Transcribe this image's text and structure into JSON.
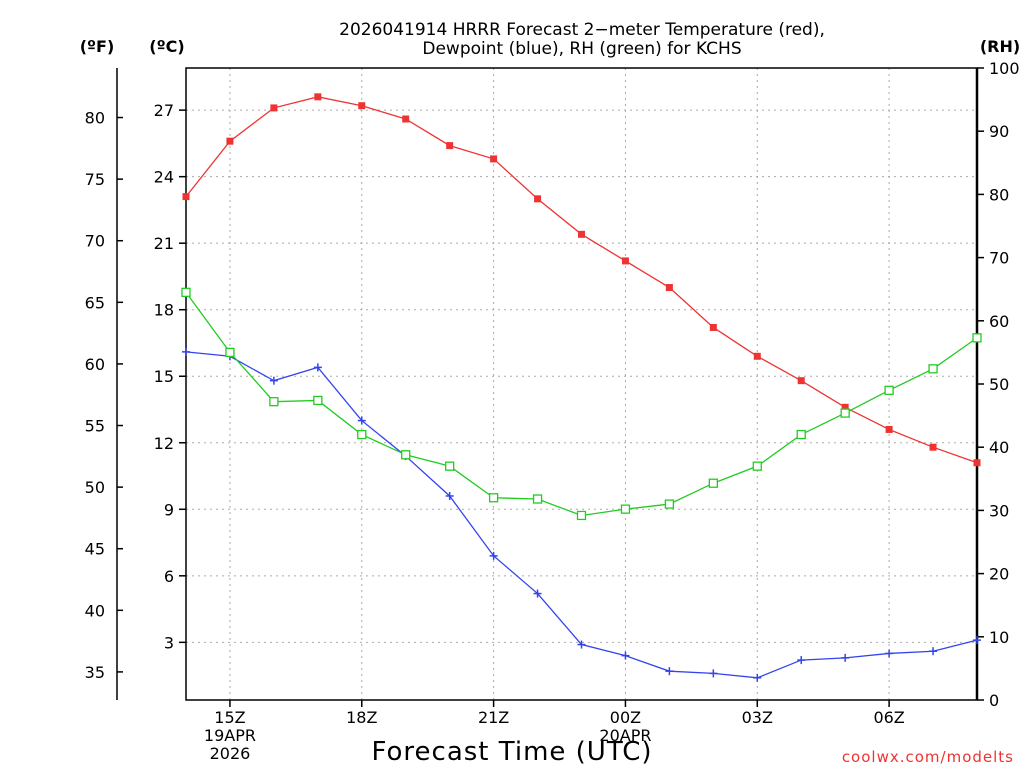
{
  "chart_data": {
    "type": "line",
    "title_lines": [
      "2026041914 HRRR Forecast 2−meter Temperature (red),",
      "Dewpoint (blue), RH (green) for KCHS"
    ],
    "xlabel": "Forecast Time (UTC)",
    "watermark": "coolwx.com/modelts",
    "units": {
      "fahrenheit": "(ºF)",
      "celsius": "(ºC)",
      "rh": "(RH)"
    },
    "x_hours": [
      14,
      15,
      16,
      17,
      18,
      19,
      20,
      21,
      22,
      23,
      24,
      25,
      26,
      27,
      28,
      29,
      30,
      31,
      32
    ],
    "xlim": [
      14,
      32
    ],
    "x_ticks": [
      {
        "hour": 15,
        "lines": [
          "15Z",
          "19APR",
          "2026"
        ]
      },
      {
        "hour": 18,
        "lines": [
          "18Z"
        ]
      },
      {
        "hour": 21,
        "lines": [
          "21Z"
        ]
      },
      {
        "hour": 24,
        "lines": [
          "00Z",
          "20APR"
        ]
      },
      {
        "hour": 27,
        "lines": [
          "03Z"
        ]
      },
      {
        "hour": 30,
        "lines": [
          "06Z"
        ]
      }
    ],
    "celsius_axis": {
      "lim": [
        0.4,
        28.9
      ],
      "ticks": [
        3,
        6,
        9,
        12,
        15,
        18,
        21,
        24,
        27
      ]
    },
    "fahrenheit_axis": {
      "ticks": [
        35,
        40,
        45,
        50,
        55,
        60,
        65,
        70,
        75,
        80
      ]
    },
    "rh_axis": {
      "lim": [
        0,
        100
      ],
      "ticks": [
        0,
        10,
        20,
        30,
        40,
        50,
        60,
        70,
        80,
        90,
        100
      ]
    },
    "series": [
      {
        "name": "Temperature",
        "axis": "celsius",
        "color": "#ee3333",
        "marker": "filled-square",
        "values": [
          23.1,
          25.6,
          27.1,
          27.6,
          27.2,
          26.6,
          25.4,
          24.8,
          23.0,
          21.4,
          20.2,
          19.0,
          17.2,
          15.9,
          14.8,
          13.6,
          12.6,
          11.8,
          11.1
        ]
      },
      {
        "name": "Dewpoint",
        "axis": "celsius",
        "color": "#3344ee",
        "marker": "plus",
        "values": [
          16.1,
          15.9,
          14.8,
          15.4,
          13.0,
          11.4,
          9.6,
          6.9,
          5.2,
          2.9,
          2.4,
          1.7,
          1.6,
          1.4,
          2.2,
          2.3,
          2.5,
          2.6,
          3.1
        ]
      },
      {
        "name": "RH",
        "axis": "rh",
        "color": "#22cc22",
        "marker": "hollow-square",
        "values": [
          64.5,
          55.0,
          47.2,
          47.4,
          42.0,
          38.8,
          37.0,
          32.0,
          31.8,
          29.2,
          30.2,
          31.0,
          34.3,
          37.0,
          42.0,
          45.4,
          49.0,
          52.4,
          57.3
        ]
      }
    ],
    "grid": true
  }
}
